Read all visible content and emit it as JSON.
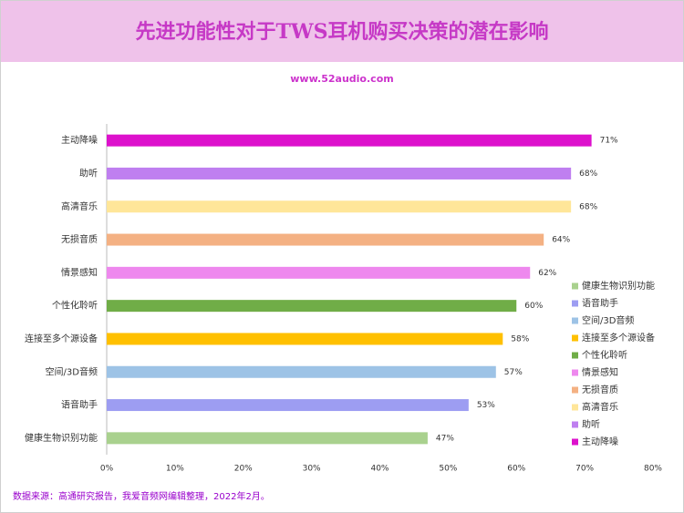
{
  "chart_data": {
    "type": "bar",
    "orientation": "horizontal",
    "title": "先进功能性对于TWS耳机购买决策的潜在影响",
    "subtitle": "www.52audio.com",
    "source": "数据来源：高通研究报告，我爱音频网编辑整理，2022年2月。",
    "categories": [
      "健康生物识别功能",
      "语音助手",
      "空间/3D音频",
      "连接至多个源设备",
      "个性化聆听",
      "情景感知",
      "无损音质",
      "高清音乐",
      "助听",
      "主动降噪"
    ],
    "values": [
      47,
      53,
      57,
      58,
      60,
      62,
      64,
      68,
      68,
      71
    ],
    "value_labels": [
      "47%",
      "53%",
      "57%",
      "58%",
      "60%",
      "62%",
      "64%",
      "68%",
      "68%",
      "71%"
    ],
    "colors": [
      "#a9d18e",
      "#9d9df2",
      "#9dc3e6",
      "#ffc000",
      "#70ad47",
      "#ee88ee",
      "#f4b183",
      "#ffe699",
      "#bf7ff0",
      "#dd11cc"
    ],
    "xlim": [
      0,
      80
    ],
    "xticks": [
      {
        "value": 0,
        "label": "0%"
      },
      {
        "value": 10,
        "label": "10%"
      },
      {
        "value": 20,
        "label": "20%"
      },
      {
        "value": 30,
        "label": "30%"
      },
      {
        "value": 40,
        "label": "40%"
      },
      {
        "value": 50,
        "label": "50%"
      },
      {
        "value": 60,
        "label": "60%"
      },
      {
        "value": 70,
        "label": "70%"
      },
      {
        "value": 80,
        "label": "80%"
      }
    ],
    "legend": "right",
    "grid": false
  }
}
